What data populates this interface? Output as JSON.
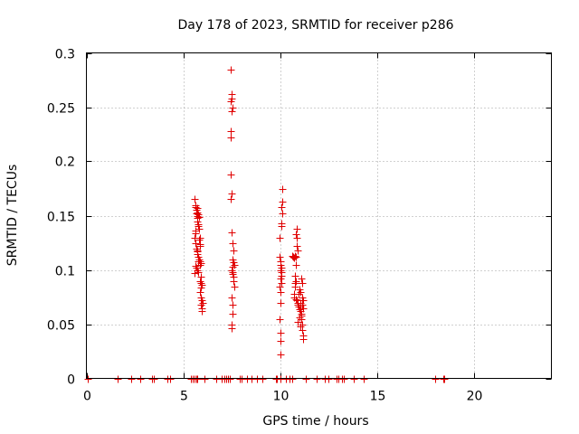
{
  "chart_data": {
    "type": "scatter",
    "title": "Day 178 of 2023, SRMTID for receiver p286",
    "xlabel": "GPS time / hours",
    "ylabel": "SRMTID / TECUs",
    "xlim": [
      0,
      24
    ],
    "ylim": [
      0,
      0.3
    ],
    "xticks": [
      0,
      5,
      10,
      15,
      20
    ],
    "xtick_labels": [
      "0",
      "5",
      "10",
      "15",
      "20"
    ],
    "yticks": [
      0,
      0.05,
      0.1,
      0.15,
      0.2,
      0.25,
      0.3
    ],
    "ytick_labels": [
      "0",
      "0.05",
      "0.1",
      "0.15",
      "0.2",
      "0.25",
      "0.3"
    ],
    "grid": true,
    "marker": "+",
    "color": "#e00000",
    "series": [
      {
        "name": "SRMTID",
        "points": [
          [
            0.05,
            0
          ],
          [
            1.6,
            0
          ],
          [
            2.3,
            0
          ],
          [
            2.8,
            0
          ],
          [
            3.4,
            0
          ],
          [
            3.5,
            0
          ],
          [
            4.2,
            0
          ],
          [
            4.3,
            0
          ],
          [
            5.4,
            0
          ],
          [
            5.5,
            0
          ],
          [
            5.6,
            0
          ],
          [
            5.65,
            0
          ],
          [
            5.7,
            0
          ],
          [
            6.1,
            0
          ],
          [
            6.7,
            0
          ],
          [
            7.0,
            0
          ],
          [
            7.1,
            0
          ],
          [
            7.2,
            0
          ],
          [
            7.3,
            0
          ],
          [
            7.4,
            0
          ],
          [
            7.9,
            0
          ],
          [
            8.0,
            0
          ],
          [
            8.3,
            0
          ],
          [
            8.5,
            0
          ],
          [
            8.8,
            0
          ],
          [
            9.1,
            0
          ],
          [
            9.8,
            0
          ],
          [
            9.85,
            0
          ],
          [
            10.0,
            0
          ],
          [
            10.3,
            0
          ],
          [
            10.5,
            0
          ],
          [
            10.6,
            0
          ],
          [
            11.3,
            0
          ],
          [
            11.9,
            0
          ],
          [
            12.3,
            0
          ],
          [
            12.5,
            0
          ],
          [
            12.9,
            0
          ],
          [
            13.0,
            0
          ],
          [
            13.2,
            0
          ],
          [
            13.3,
            0
          ],
          [
            13.8,
            0
          ],
          [
            14.3,
            0
          ],
          [
            18.0,
            0
          ],
          [
            18.4,
            0
          ],
          [
            18.45,
            0
          ],
          [
            5.6,
            0.165
          ],
          [
            5.62,
            0.16
          ],
          [
            5.64,
            0.158
          ],
          [
            5.66,
            0.155
          ],
          [
            5.68,
            0.152
          ],
          [
            5.7,
            0.15
          ],
          [
            5.72,
            0.148
          ],
          [
            5.74,
            0.145
          ],
          [
            5.76,
            0.142
          ],
          [
            5.78,
            0.14
          ],
          [
            5.8,
            0.138
          ],
          [
            5.62,
            0.136
          ],
          [
            5.64,
            0.134
          ],
          [
            5.66,
            0.155
          ],
          [
            5.7,
            0.157
          ],
          [
            5.74,
            0.153
          ],
          [
            5.78,
            0.151
          ],
          [
            5.82,
            0.149
          ],
          [
            5.6,
            0.13
          ],
          [
            5.62,
            0.125
          ],
          [
            5.66,
            0.12
          ],
          [
            5.7,
            0.118
          ],
          [
            5.74,
            0.115
          ],
          [
            5.78,
            0.112
          ],
          [
            5.82,
            0.11
          ],
          [
            5.86,
            0.108
          ],
          [
            5.9,
            0.106
          ],
          [
            5.64,
            0.104
          ],
          [
            5.68,
            0.102
          ],
          [
            5.72,
            0.1
          ],
          [
            5.76,
            0.098
          ],
          [
            5.8,
            0.128
          ],
          [
            5.84,
            0.124
          ],
          [
            5.88,
            0.122
          ],
          [
            5.92,
            0.094
          ],
          [
            5.86,
            0.09
          ],
          [
            5.9,
            0.088
          ],
          [
            5.94,
            0.086
          ],
          [
            5.9,
            0.084
          ],
          [
            5.88,
            0.08
          ],
          [
            5.92,
            0.075
          ],
          [
            5.96,
            0.072
          ],
          [
            5.98,
            0.07
          ],
          [
            5.92,
            0.068
          ],
          [
            5.96,
            0.065
          ],
          [
            5.94,
            0.062
          ],
          [
            5.7,
            0.117
          ],
          [
            5.76,
            0.108
          ],
          [
            5.84,
            0.105
          ],
          [
            5.56,
            0.097
          ],
          [
            5.88,
            0.13
          ],
          [
            7.45,
            0.285
          ],
          [
            7.48,
            0.262
          ],
          [
            7.5,
            0.258
          ],
          [
            7.46,
            0.255
          ],
          [
            7.52,
            0.25
          ],
          [
            7.5,
            0.246
          ],
          [
            7.44,
            0.228
          ],
          [
            7.47,
            0.222
          ],
          [
            7.45,
            0.188
          ],
          [
            7.5,
            0.17
          ],
          [
            7.46,
            0.165
          ],
          [
            7.48,
            0.135
          ],
          [
            7.55,
            0.125
          ],
          [
            7.6,
            0.118
          ],
          [
            7.52,
            0.11
          ],
          [
            7.58,
            0.107
          ],
          [
            7.62,
            0.105
          ],
          [
            7.54,
            0.103
          ],
          [
            7.5,
            0.1
          ],
          [
            7.56,
            0.098
          ],
          [
            7.52,
            0.096
          ],
          [
            7.6,
            0.094
          ],
          [
            7.58,
            0.09
          ],
          [
            7.62,
            0.085
          ],
          [
            7.5,
            0.075
          ],
          [
            7.52,
            0.068
          ],
          [
            7.54,
            0.06
          ],
          [
            7.5,
            0.05
          ],
          [
            7.48,
            0.046
          ],
          [
            10.1,
            0.175
          ],
          [
            10.12,
            0.163
          ],
          [
            10.08,
            0.158
          ],
          [
            10.1,
            0.152
          ],
          [
            10.04,
            0.143
          ],
          [
            10.08,
            0.14
          ],
          [
            9.95,
            0.13
          ],
          [
            9.98,
            0.112
          ],
          [
            10.0,
            0.108
          ],
          [
            10.02,
            0.105
          ],
          [
            10.06,
            0.102
          ],
          [
            10.0,
            0.1
          ],
          [
            10.04,
            0.098
          ],
          [
            10.08,
            0.095
          ],
          [
            10.02,
            0.092
          ],
          [
            10.04,
            0.088
          ],
          [
            9.98,
            0.085
          ],
          [
            10.0,
            0.08
          ],
          [
            10.02,
            0.07
          ],
          [
            9.98,
            0.055
          ],
          [
            10.0,
            0.042
          ],
          [
            10.02,
            0.035
          ],
          [
            10.0,
            0.022
          ],
          [
            10.6,
            0.113
          ],
          [
            10.65,
            0.112
          ],
          [
            10.7,
            0.111
          ],
          [
            10.75,
            0.113
          ],
          [
            10.8,
            0.112
          ],
          [
            10.85,
            0.138
          ],
          [
            10.82,
            0.133
          ],
          [
            10.86,
            0.13
          ],
          [
            10.84,
            0.122
          ],
          [
            10.88,
            0.118
          ],
          [
            10.8,
            0.105
          ],
          [
            10.78,
            0.095
          ],
          [
            10.82,
            0.09
          ],
          [
            10.76,
            0.088
          ],
          [
            10.74,
            0.085
          ],
          [
            10.7,
            0.078
          ],
          [
            10.72,
            0.075
          ],
          [
            10.8,
            0.073
          ],
          [
            10.85,
            0.072
          ],
          [
            10.88,
            0.07
          ],
          [
            10.9,
            0.068
          ],
          [
            10.95,
            0.066
          ],
          [
            11.0,
            0.064
          ],
          [
            11.05,
            0.062
          ],
          [
            11.1,
            0.06
          ],
          [
            11.08,
            0.058
          ],
          [
            11.12,
            0.075
          ],
          [
            11.05,
            0.08
          ],
          [
            11.0,
            0.082
          ],
          [
            10.95,
            0.078
          ],
          [
            11.1,
            0.092
          ],
          [
            11.15,
            0.088
          ],
          [
            11.18,
            0.072
          ],
          [
            11.15,
            0.068
          ],
          [
            11.2,
            0.065
          ],
          [
            11.1,
            0.055
          ],
          [
            11.12,
            0.05
          ],
          [
            11.05,
            0.048
          ],
          [
            11.15,
            0.045
          ],
          [
            11.18,
            0.04
          ],
          [
            11.16,
            0.036
          ],
          [
            11.0,
            0.056
          ],
          [
            10.92,
            0.052
          ],
          [
            11.02,
            0.07
          ],
          [
            11.06,
            0.066
          ]
        ]
      }
    ]
  }
}
